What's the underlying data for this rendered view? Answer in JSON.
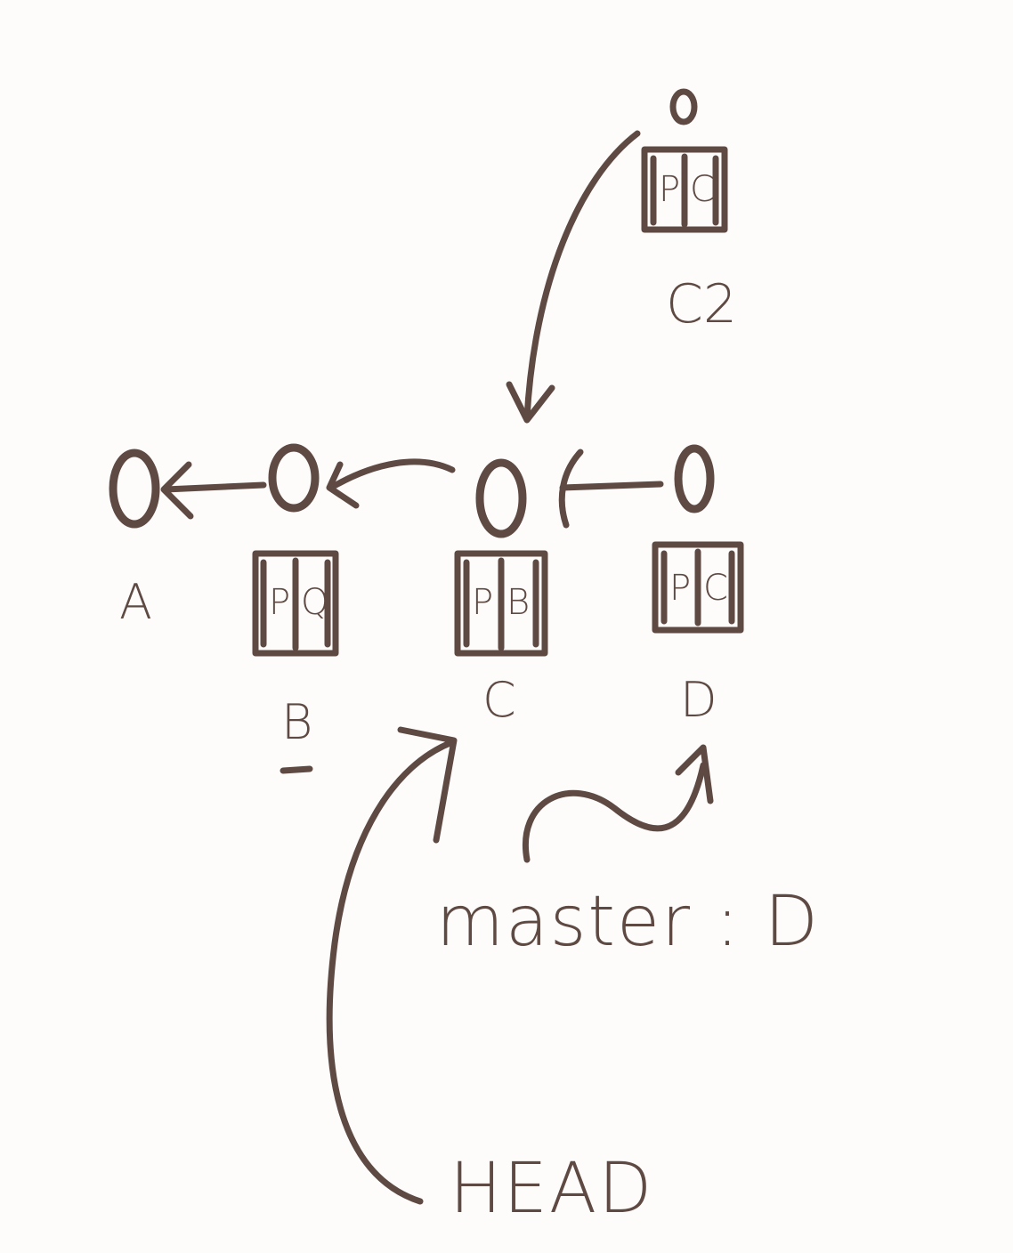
{
  "commits": [
    {
      "id": "A",
      "label": "A",
      "tree": null
    },
    {
      "id": "B",
      "label": "B",
      "tree": [
        "P",
        "Q"
      ]
    },
    {
      "id": "C",
      "label": "C",
      "tree": [
        "P",
        "B"
      ]
    },
    {
      "id": "D",
      "label": "D",
      "tree": [
        "P",
        "C"
      ]
    },
    {
      "id": "C2",
      "label": "C2",
      "tree": [
        "P",
        "C"
      ]
    }
  ],
  "refs": {
    "master": "master : D",
    "head": "HEAD"
  },
  "colors": {
    "ink": "#5e4a43",
    "paper": "#fdfcfb"
  }
}
